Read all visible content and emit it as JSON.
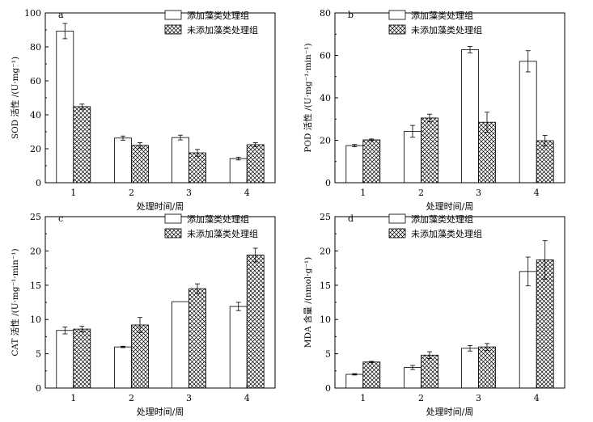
{
  "legend": {
    "added": "添加藻类处理组",
    "not_added": "未添加藻类处理组"
  },
  "chart_data": [
    {
      "type": "bar",
      "panel_label": "a",
      "xlabel": "处理时间/周",
      "ylabel": "SOD 活性 /(U·mg⁻¹)",
      "ylim": [
        0,
        100
      ],
      "yticks": [
        0,
        20,
        40,
        60,
        80,
        100
      ],
      "categories": [
        "1",
        "2",
        "3",
        "4"
      ],
      "series": [
        {
          "name": "添加藻类处理组",
          "values": [
            89.3,
            26.3,
            26.6,
            14.2
          ],
          "errors": [
            4.5,
            1.2,
            1.4,
            0.8
          ]
        },
        {
          "name": "未添加藻类处理组",
          "values": [
            44.8,
            22.0,
            17.6,
            22.4
          ],
          "errors": [
            1.5,
            1.6,
            2.0,
            1.2
          ]
        }
      ],
      "legend_position": "top-right"
    },
    {
      "type": "bar",
      "panel_label": "b",
      "xlabel": "处理时间/周",
      "ylabel": "POD 活性 /(U·mg⁻¹·min⁻¹)",
      "ylim": [
        0,
        80
      ],
      "yticks": [
        0,
        20,
        40,
        60,
        80
      ],
      "categories": [
        "1",
        "2",
        "3",
        "4"
      ],
      "series": [
        {
          "name": "添加藻类处理组",
          "values": [
            17.5,
            24.2,
            62.7,
            57.2
          ],
          "errors": [
            0.5,
            2.8,
            1.5,
            5.0
          ]
        },
        {
          "name": "未添加藻类处理组",
          "values": [
            20.2,
            30.5,
            28.5,
            19.8
          ],
          "errors": [
            0.4,
            1.8,
            4.7,
            2.5
          ]
        }
      ],
      "legend_position": "top-right"
    },
    {
      "type": "bar",
      "panel_label": "c",
      "xlabel": "处理时间/周",
      "ylabel": "CAT 活性 /(U·mg⁻¹·min⁻¹)",
      "ylim": [
        0,
        25
      ],
      "yticks": [
        0,
        5,
        10,
        15,
        20,
        25
      ],
      "categories": [
        "1",
        "2",
        "3",
        "4"
      ],
      "series": [
        {
          "name": "添加藻类处理组",
          "values": [
            8.4,
            6.0,
            12.6,
            11.9
          ],
          "errors": [
            0.5,
            0.1,
            0.0,
            0.6
          ]
        },
        {
          "name": "未添加藻类处理组",
          "values": [
            8.6,
            9.2,
            14.5,
            19.4
          ],
          "errors": [
            0.4,
            1.1,
            0.7,
            1.0
          ]
        }
      ],
      "legend_position": "top-right"
    },
    {
      "type": "bar",
      "panel_label": "d",
      "xlabel": "处理时间/周",
      "ylabel": "MDA 含量 /(nmol·g⁻¹)",
      "ylim": [
        0,
        25
      ],
      "yticks": [
        0,
        5,
        10,
        15,
        20,
        25
      ],
      "categories": [
        "1",
        "2",
        "3",
        "4"
      ],
      "series": [
        {
          "name": "添加藻类处理组",
          "values": [
            2.0,
            3.0,
            5.8,
            17.0
          ],
          "errors": [
            0.1,
            0.3,
            0.4,
            2.1
          ]
        },
        {
          "name": "未添加藻类处理组",
          "values": [
            3.8,
            4.8,
            6.0,
            18.7
          ],
          "errors": [
            0.1,
            0.5,
            0.5,
            2.8
          ]
        }
      ],
      "legend_position": "top-right"
    }
  ]
}
